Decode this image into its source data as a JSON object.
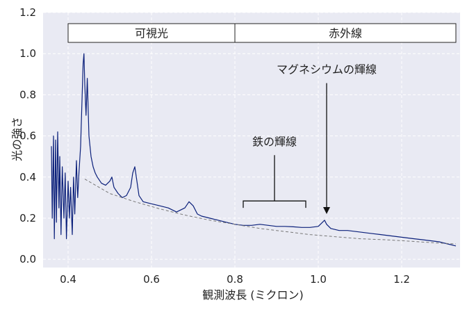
{
  "chart_data": {
    "type": "line",
    "xlabel": "観測波長 (ミクロン)",
    "ylabel": "光の強さ",
    "xlim": [
      0.34,
      1.34
    ],
    "ylim": [
      -0.04,
      1.2
    ],
    "x_ticks": [
      0.4,
      0.6,
      0.8,
      1.0,
      1.2
    ],
    "y_ticks": [
      0.0,
      0.2,
      0.4,
      0.6,
      0.8,
      1.0,
      1.2
    ],
    "grid": true,
    "background_color": "#e9eaf3",
    "series": [
      {
        "color": "#0a1f7a",
        "style": "solid",
        "points": [
          [
            0.36,
            0.55
          ],
          [
            0.362,
            0.2
          ],
          [
            0.365,
            0.6
          ],
          [
            0.367,
            0.1
          ],
          [
            0.37,
            0.58
          ],
          [
            0.372,
            0.18
          ],
          [
            0.375,
            0.62
          ],
          [
            0.378,
            0.25
          ],
          [
            0.38,
            0.5
          ],
          [
            0.383,
            0.12
          ],
          [
            0.386,
            0.45
          ],
          [
            0.39,
            0.2
          ],
          [
            0.393,
            0.42
          ],
          [
            0.396,
            0.1
          ],
          [
            0.4,
            0.38
          ],
          [
            0.403,
            0.2
          ],
          [
            0.406,
            0.35
          ],
          [
            0.41,
            0.12
          ],
          [
            0.413,
            0.4
          ],
          [
            0.416,
            0.22
          ],
          [
            0.42,
            0.48
          ],
          [
            0.423,
            0.3
          ],
          [
            0.426,
            0.42
          ],
          [
            0.43,
            0.55
          ],
          [
            0.433,
            0.75
          ],
          [
            0.436,
            0.95
          ],
          [
            0.438,
            1.0
          ],
          [
            0.44,
            0.85
          ],
          [
            0.443,
            0.7
          ],
          [
            0.446,
            0.88
          ],
          [
            0.45,
            0.6
          ],
          [
            0.455,
            0.5
          ],
          [
            0.46,
            0.45
          ],
          [
            0.465,
            0.42
          ],
          [
            0.47,
            0.4
          ],
          [
            0.48,
            0.37
          ],
          [
            0.49,
            0.36
          ],
          [
            0.5,
            0.38
          ],
          [
            0.505,
            0.4
          ],
          [
            0.51,
            0.35
          ],
          [
            0.52,
            0.32
          ],
          [
            0.53,
            0.3
          ],
          [
            0.54,
            0.31
          ],
          [
            0.55,
            0.35
          ],
          [
            0.555,
            0.42
          ],
          [
            0.56,
            0.45
          ],
          [
            0.565,
            0.38
          ],
          [
            0.57,
            0.31
          ],
          [
            0.58,
            0.28
          ],
          [
            0.6,
            0.27
          ],
          [
            0.62,
            0.26
          ],
          [
            0.64,
            0.25
          ],
          [
            0.66,
            0.23
          ],
          [
            0.68,
            0.25
          ],
          [
            0.69,
            0.28
          ],
          [
            0.7,
            0.26
          ],
          [
            0.71,
            0.22
          ],
          [
            0.72,
            0.21
          ],
          [
            0.74,
            0.2
          ],
          [
            0.76,
            0.19
          ],
          [
            0.78,
            0.18
          ],
          [
            0.8,
            0.17
          ],
          [
            0.82,
            0.165
          ],
          [
            0.84,
            0.165
          ],
          [
            0.86,
            0.17
          ],
          [
            0.88,
            0.165
          ],
          [
            0.9,
            0.16
          ],
          [
            0.92,
            0.16
          ],
          [
            0.94,
            0.158
          ],
          [
            0.96,
            0.155
          ],
          [
            0.98,
            0.155
          ],
          [
            1.0,
            0.16
          ],
          [
            1.01,
            0.18
          ],
          [
            1.015,
            0.19
          ],
          [
            1.02,
            0.17
          ],
          [
            1.03,
            0.15
          ],
          [
            1.05,
            0.14
          ],
          [
            1.07,
            0.14
          ],
          [
            1.09,
            0.135
          ],
          [
            1.11,
            0.13
          ],
          [
            1.13,
            0.125
          ],
          [
            1.15,
            0.12
          ],
          [
            1.17,
            0.115
          ],
          [
            1.19,
            0.11
          ],
          [
            1.21,
            0.105
          ],
          [
            1.23,
            0.1
          ],
          [
            1.25,
            0.095
          ],
          [
            1.27,
            0.09
          ],
          [
            1.29,
            0.085
          ],
          [
            1.31,
            0.075
          ],
          [
            1.33,
            0.065
          ]
        ]
      },
      {
        "color": "#777777",
        "style": "dashed",
        "points": [
          [
            0.44,
            0.39
          ],
          [
            0.5,
            0.32
          ],
          [
            0.56,
            0.28
          ],
          [
            0.62,
            0.245
          ],
          [
            0.68,
            0.215
          ],
          [
            0.74,
            0.19
          ],
          [
            0.8,
            0.17
          ],
          [
            0.86,
            0.15
          ],
          [
            0.92,
            0.135
          ],
          [
            0.98,
            0.12
          ],
          [
            1.04,
            0.11
          ],
          [
            1.1,
            0.1
          ],
          [
            1.16,
            0.095
          ],
          [
            1.22,
            0.088
          ],
          [
            1.28,
            0.08
          ],
          [
            1.33,
            0.075
          ]
        ]
      }
    ],
    "bands": [
      {
        "label": "可視光",
        "x_start": 0.4,
        "x_end": 0.8
      },
      {
        "label": "赤外線",
        "x_start": 0.8,
        "x_end": 1.33
      }
    ],
    "annotations": [
      {
        "label": "マグネシウムの輝線",
        "type": "arrow",
        "x": 1.02,
        "y_label": 0.87,
        "y_tip": 0.22
      },
      {
        "label": "鉄の輝線",
        "type": "bracket",
        "x_start": 0.82,
        "x_end": 0.97,
        "y_label": 0.52,
        "y_bracket": 0.25
      }
    ]
  }
}
